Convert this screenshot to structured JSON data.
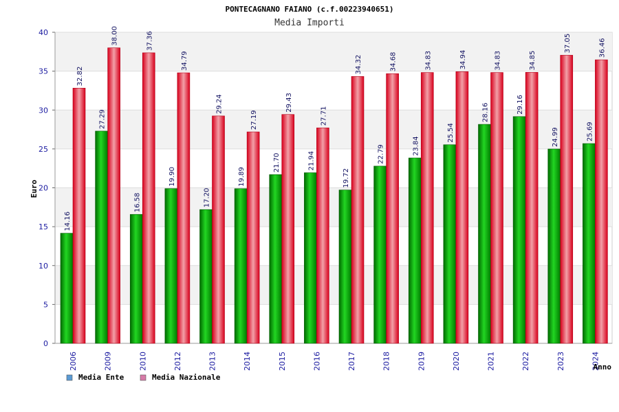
{
  "chart_data": {
    "type": "bar",
    "title": "PONTECAGNANO FAIANO (c.f.00223940651)",
    "subtitle": "Media Importi",
    "xlabel": "Anno",
    "ylabel": "Euro",
    "ylim": [
      0,
      40
    ],
    "yticks": [
      "0",
      "5",
      "10",
      "15",
      "20",
      "25",
      "30",
      "35",
      "40"
    ],
    "grid": true,
    "legend_position": "bottom-left",
    "categories": [
      "2006",
      "2009",
      "2010",
      "2012",
      "2013",
      "2014",
      "2015",
      "2016",
      "2017",
      "2018",
      "2019",
      "2020",
      "2021",
      "2022",
      "2023",
      "2024"
    ],
    "series": [
      {
        "name": "Media Ente",
        "color": "#00b000",
        "legend_color": "#5b9bd5",
        "values": [
          14.16,
          27.29,
          16.58,
          19.9,
          17.2,
          19.89,
          21.7,
          21.94,
          19.72,
          22.79,
          23.84,
          25.54,
          28.16,
          29.16,
          24.99,
          25.69
        ],
        "labels": [
          "14.16",
          "27.29",
          "16.58",
          "19.90",
          "17.20",
          "19.89",
          "21.70",
          "21.94",
          "19.72",
          "22.79",
          "23.84",
          "25.54",
          "28.16",
          "29.16",
          "24.99",
          "25.69"
        ]
      },
      {
        "name": "Media Nazionale",
        "color": "#e00020",
        "legend_color": "#d77ba8",
        "values": [
          32.82,
          38.0,
          37.36,
          34.79,
          29.24,
          27.19,
          29.43,
          27.71,
          34.32,
          34.68,
          34.83,
          34.94,
          34.83,
          34.85,
          37.05,
          36.46
        ],
        "labels": [
          "32.82",
          "38.00",
          "37.36",
          "34.79",
          "29.24",
          "27.19",
          "29.43",
          "27.71",
          "34.32",
          "34.68",
          "34.83",
          "34.94",
          "34.83",
          "34.85",
          "37.05",
          "36.46"
        ]
      }
    ]
  }
}
